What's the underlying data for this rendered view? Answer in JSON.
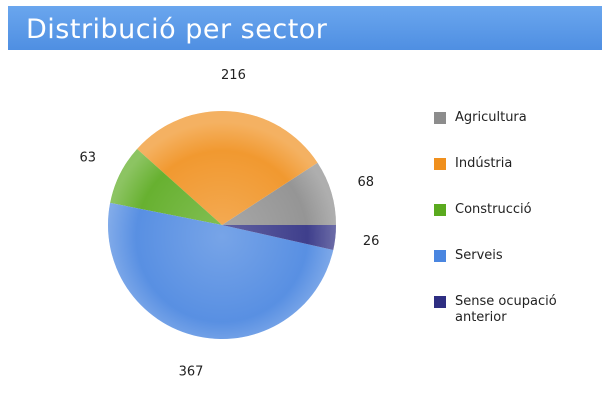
{
  "chart_data": {
    "type": "pie",
    "title": "Distribució per sector",
    "categories": [
      "Agricultura",
      "Indústria",
      "Construcció",
      "Serveis",
      "Sense ocupació anterior"
    ],
    "values": [
      68,
      216,
      63,
      367,
      26
    ],
    "colors": [
      "#8c8c8c",
      "#f0901e",
      "#5aaa1e",
      "#4a86e0",
      "#2e2e82"
    ]
  }
}
